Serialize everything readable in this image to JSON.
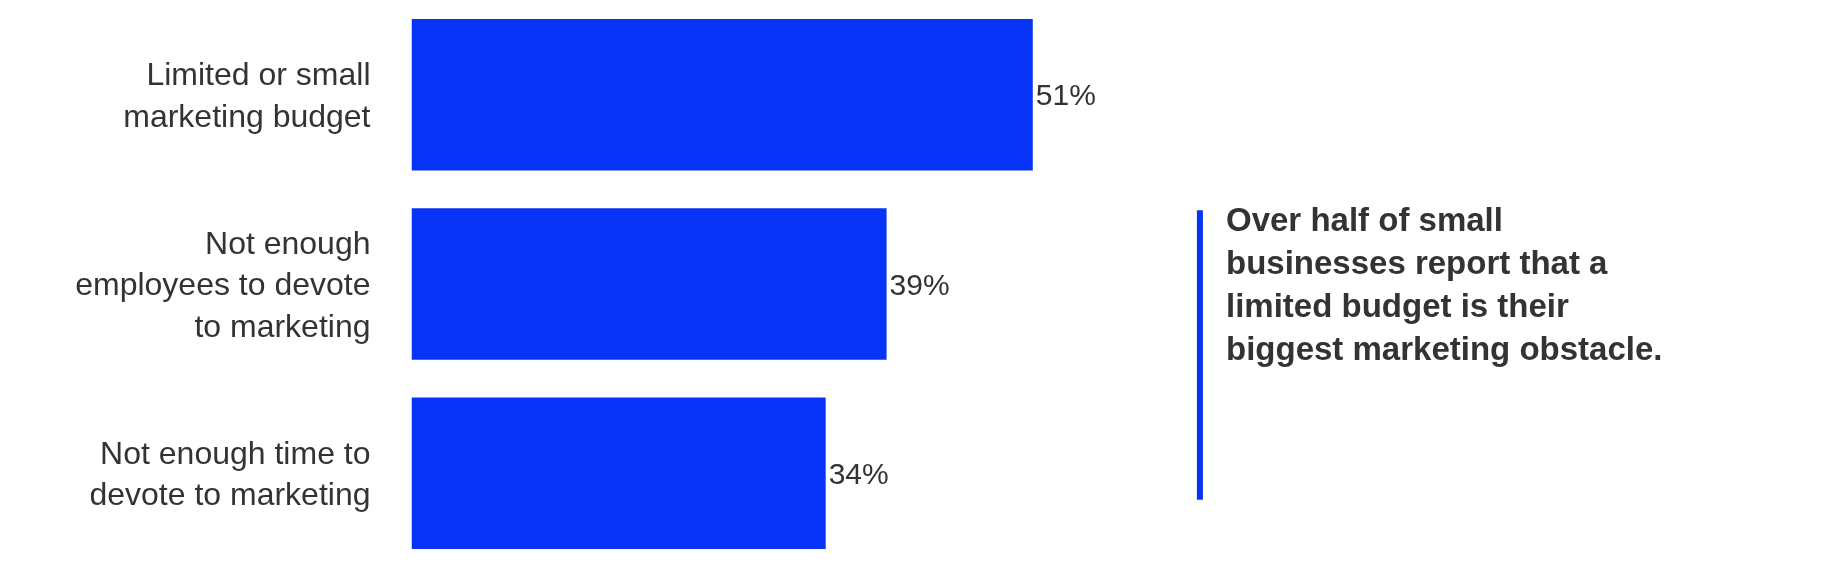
{
  "chart_data": {
    "type": "bar",
    "orientation": "horizontal",
    "categories": [
      "Limited or small marketing budget",
      "Not enough employees to devote to marketing",
      "Not enough time to devote to marketing"
    ],
    "values": [
      51,
      39,
      34
    ],
    "value_labels": [
      "51%",
      "39%",
      "34%"
    ],
    "color": "#0633f5",
    "legend": false,
    "annotations": [
      "Over half of small businesses report that a limited budget is their biggest marketing obstacle."
    ]
  }
}
